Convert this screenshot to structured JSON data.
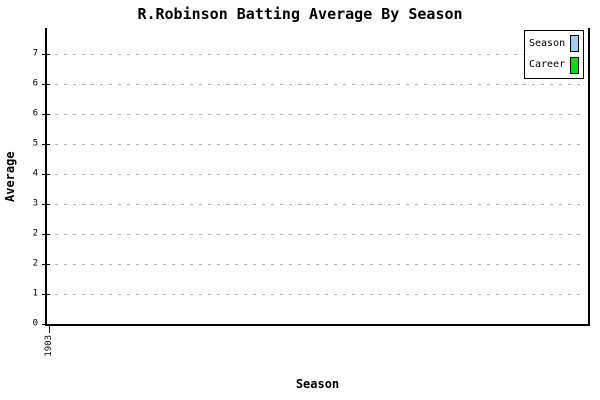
{
  "title": "R.Robinson Batting Average By Season",
  "legend": {
    "items": [
      {
        "label": "Season",
        "color": "#A8CCEE"
      },
      {
        "label": "Career",
        "color": "#00DD00"
      }
    ]
  },
  "colors": {
    "background": "#FFFFFF",
    "axis": "#000000",
    "grid": "#B4B4B4",
    "season_swatch": "#A8CCEE",
    "career_swatch": "#00DD00"
  },
  "chart_data": {
    "type": "line",
    "title": "R.Robinson Batting Average By Season",
    "xlabel": "Season",
    "ylabel": "Average",
    "x_tick_labels": [
      "1903"
    ],
    "y_ticks": [
      {
        "label": "7",
        "grid": true
      },
      {
        "label": "6",
        "grid": true
      },
      {
        "label": "6",
        "grid": true
      },
      {
        "label": "5",
        "grid": true
      },
      {
        "label": "4",
        "grid": true
      },
      {
        "label": "3",
        "grid": true
      },
      {
        "label": "2",
        "grid": true
      },
      {
        "label": "2",
        "grid": true
      },
      {
        "label": "1",
        "grid": true
      },
      {
        "label": "0",
        "grid": false
      }
    ],
    "grid_style": "horizontal-dashed",
    "legend_position": "top-right",
    "legend_entries": [
      "Season",
      "Career"
    ],
    "series": [
      {
        "name": "Season",
        "color": "#A8CCEE",
        "values": []
      },
      {
        "name": "Career",
        "color": "#00DD00",
        "values": []
      }
    ]
  }
}
